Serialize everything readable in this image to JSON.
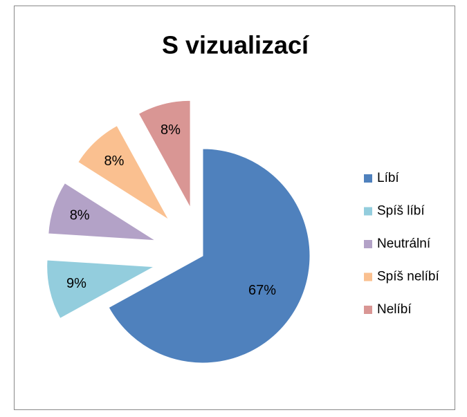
{
  "chart_data": {
    "type": "pie",
    "title": "S vizualizací",
    "categories": [
      "Líbí",
      "Spíš líbí",
      "Neutrální",
      "Spíš nelíbí",
      "Nelíbí"
    ],
    "values": [
      67,
      9,
      8,
      8,
      8
    ],
    "value_labels": [
      "67%",
      "9%",
      "8%",
      "8%",
      "8%"
    ],
    "colors": [
      "#4f81bd",
      "#93cddd",
      "#b3a2c7",
      "#fac090",
      "#d99694"
    ],
    "legend": "right"
  }
}
